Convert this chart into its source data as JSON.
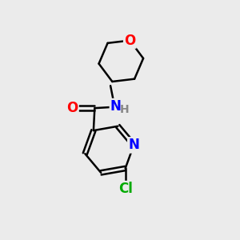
{
  "background_color": "#ebebeb",
  "bond_color": "#000000",
  "bond_width": 1.8,
  "atom_colors": {
    "O": "#ff0000",
    "N": "#0000ff",
    "Cl": "#00aa00",
    "H": "#888888",
    "C": "#000000"
  },
  "font_size_atoms": 12,
  "font_size_H": 10,
  "figsize": [
    3.0,
    3.0
  ],
  "dpi": 100
}
